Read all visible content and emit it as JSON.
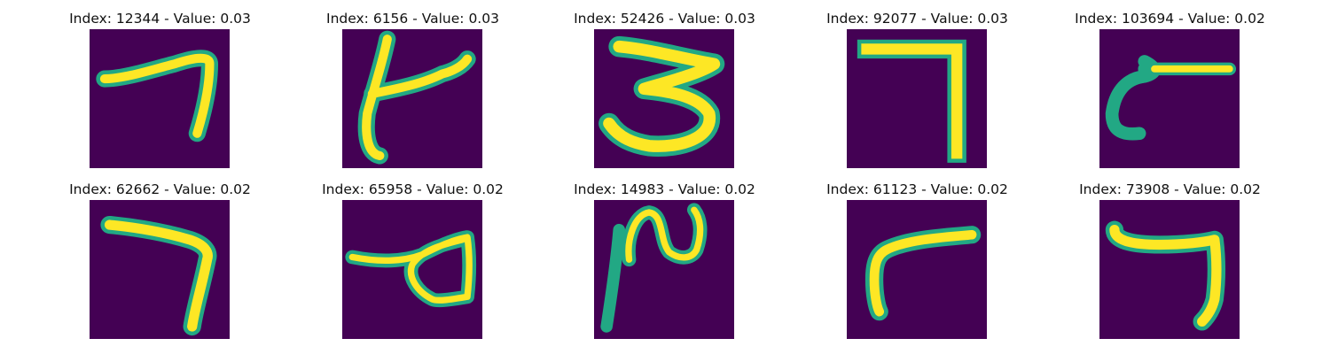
{
  "colormap": {
    "background": "#440154",
    "low": "#2a788e",
    "mid": "#22a884",
    "high": "#fde725"
  },
  "panels": [
    {
      "title": "Index: 12344 - Value: 0.03",
      "digit_shape": "seven-like"
    },
    {
      "title": "Index: 6156 - Value: 0.03",
      "digit_shape": "four-like"
    },
    {
      "title": "Index: 52426 - Value: 0.03",
      "digit_shape": "three"
    },
    {
      "title": "Index: 92077 - Value: 0.03",
      "digit_shape": "seven"
    },
    {
      "title": "Index: 103694 - Value: 0.02",
      "digit_shape": "two-like"
    },
    {
      "title": "Index: 62662 - Value: 0.02",
      "digit_shape": "seven"
    },
    {
      "title": "Index: 65958 - Value: 0.02",
      "digit_shape": "loop-stroke"
    },
    {
      "title": "Index: 14983 - Value: 0.02",
      "digit_shape": "two-like"
    },
    {
      "title": "Index: 61123 - Value: 0.02",
      "digit_shape": "rotated-l"
    },
    {
      "title": "Index: 73908 - Value: 0.02",
      "digit_shape": "seven"
    }
  ]
}
